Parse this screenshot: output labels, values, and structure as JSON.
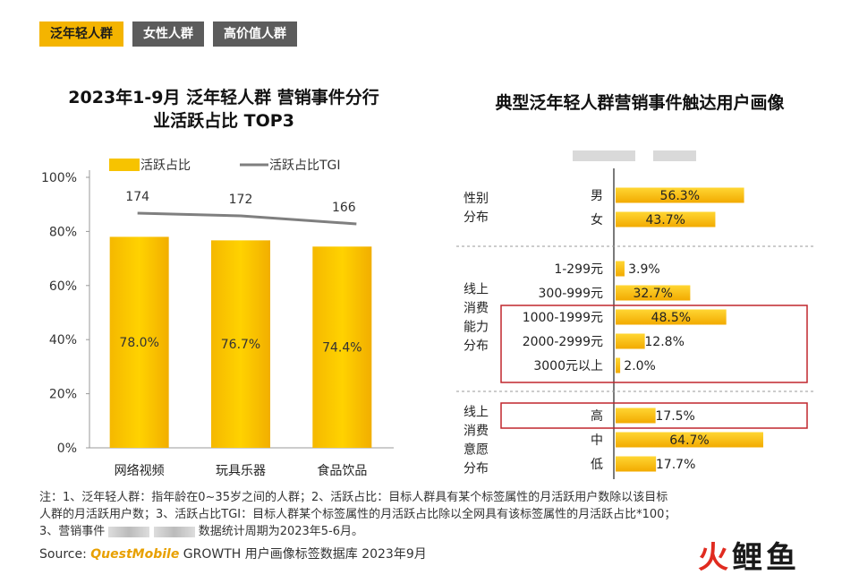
{
  "tabs": [
    {
      "label": "泛年轻人群",
      "active": true
    },
    {
      "label": "女性人群",
      "active": false
    },
    {
      "label": "高价值人群",
      "active": false
    }
  ],
  "left_title_line1": "2023年1-9月 泛年轻人群 营销事件分行",
  "left_title_line2": "业活跃占比 TOP3",
  "right_title": "典型泛年轻人群营销事件触达用户画像",
  "chart_data": [
    {
      "type": "bar",
      "categories": [
        "网络视频",
        "玩具乐器",
        "食品饮品"
      ],
      "series": [
        {
          "name": "活跃占比",
          "values": [
            78.0,
            76.7,
            74.4
          ],
          "value_labels": [
            "78.0%",
            "76.7%",
            "74.4%"
          ]
        },
        {
          "name": "活跃占比TGI",
          "values": [
            174,
            172,
            166
          ],
          "value_labels": [
            "174",
            "172",
            "166"
          ]
        }
      ],
      "y_ticks": [
        "100%",
        "80%",
        "60%",
        "40%",
        "20%",
        "0%"
      ],
      "ylim": [
        0,
        100
      ],
      "legend": "top",
      "colors": {
        "bar": "#f7c300",
        "line": "#7f7f7f"
      }
    },
    {
      "type": "bar",
      "orientation": "horizontal",
      "groups": [
        {
          "name_lines": [
            "性别",
            "分布"
          ],
          "items": [
            {
              "label": "男",
              "value": 56.3,
              "display": "56.3%"
            },
            {
              "label": "女",
              "value": 43.7,
              "display": "43.7%"
            }
          ]
        },
        {
          "name_lines": [
            "线上",
            "消费",
            "能力",
            "分布"
          ],
          "items": [
            {
              "label": "1-299元",
              "value": 3.9,
              "display": "3.9%"
            },
            {
              "label": "300-999元",
              "value": 32.7,
              "display": "32.7%"
            },
            {
              "label": "1000-1999元",
              "value": 48.5,
              "display": "48.5%"
            },
            {
              "label": "2000-2999元",
              "value": 12.8,
              "display": "12.8%"
            },
            {
              "label": "3000元以上",
              "value": 2.0,
              "display": "2.0%"
            }
          ]
        },
        {
          "name_lines": [
            "线上",
            "消费",
            "意愿",
            "分布"
          ],
          "items": [
            {
              "label": "高",
              "value": 17.5,
              "display": "17.5%"
            },
            {
              "label": "中",
              "value": 64.7,
              "display": "64.7%"
            },
            {
              "label": "低",
              "value": 17.7,
              "display": "17.7%"
            }
          ]
        }
      ],
      "highlight_color": "#c0272d"
    }
  ],
  "footnote": {
    "line1": "注：1、泛年轻人群：指年龄在0~35岁之间的人群；2、活跃占比：目标人群具有某个标签属性的月活跃用户数除以该目标",
    "line2": "人群的月活跃用户数；3、活跃占比TGI：目标人群某个标签属性的月活跃占比除以全网具有该标签属性的月活跃占比*100；",
    "line3_a": "3、营销事件",
    "line3_b": "数据统计周期为2023年5-6月。"
  },
  "source": {
    "prefix": "Source:",
    "brand": "QuestMobile",
    "rest": "GROWTH 用户画像标签数据库 2023年9月"
  },
  "logo": {
    "part1": "火",
    "part2": "鲤鱼"
  }
}
